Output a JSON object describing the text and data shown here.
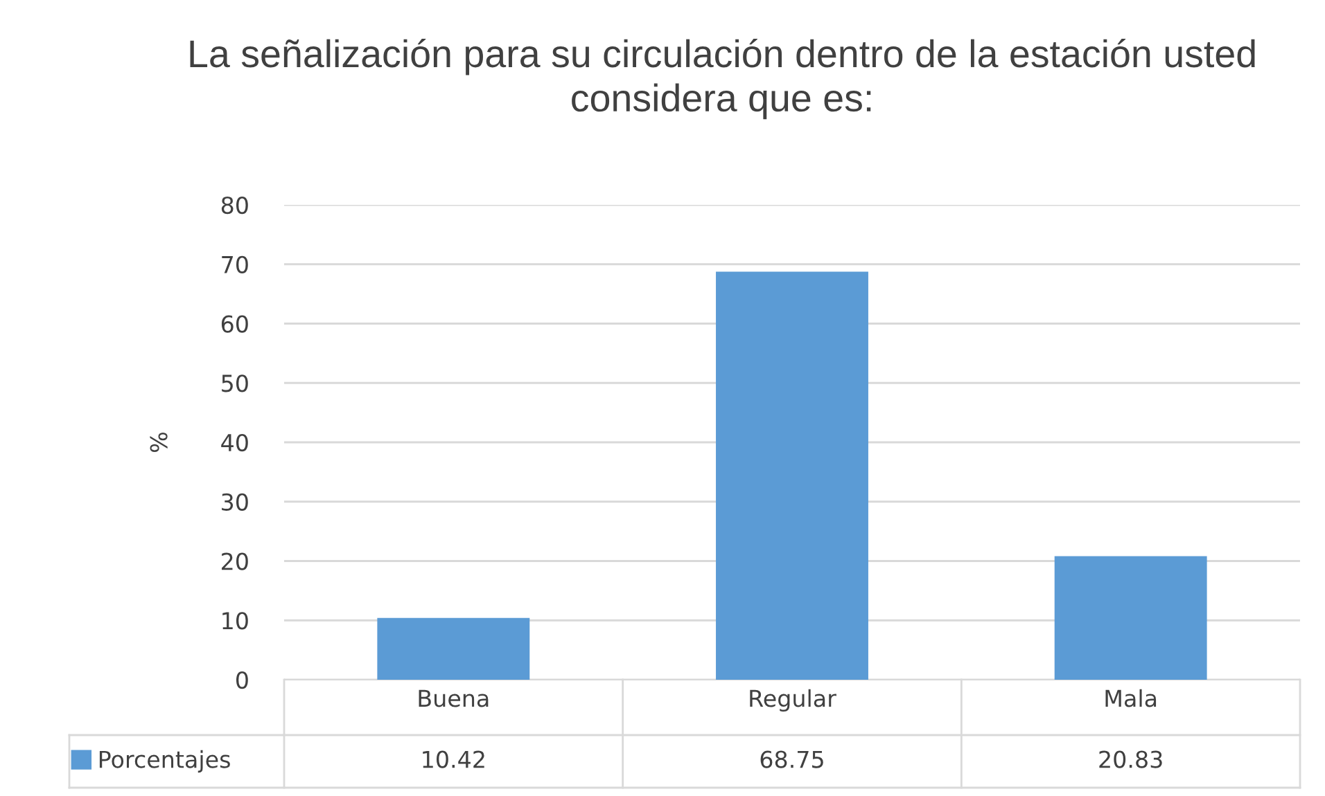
{
  "chart_data": {
    "type": "bar",
    "title": "La señalización para su circulación dentro de la estación usted considera que es:",
    "ylabel": "%",
    "categories": [
      "Buena",
      "Regular",
      "Mala"
    ],
    "series": [
      {
        "name": "Porcentajes",
        "color": "#5b9bd5",
        "values": [
          10.42,
          68.75,
          20.83
        ]
      }
    ],
    "ylim": [
      0,
      80
    ],
    "yticks": [
      0,
      10,
      20,
      30,
      40,
      50,
      60,
      70,
      80
    ],
    "grid": "y",
    "legend": "bottom",
    "data_labels": true
  }
}
